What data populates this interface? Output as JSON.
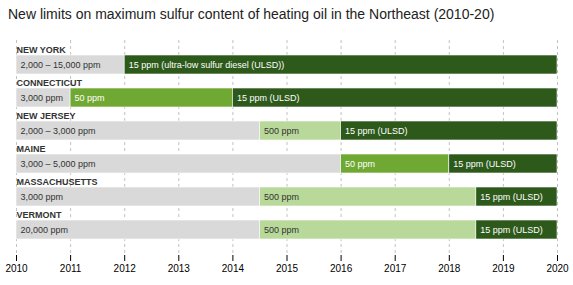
{
  "chart_data": {
    "type": "timeline",
    "title": "New limits on maximum sulfur content of heating oil in the Northeast (2010-20)",
    "orientation": "horizontal",
    "xlim": [
      2010,
      2020
    ],
    "xticks": [
      2010,
      2011,
      2012,
      2013,
      2014,
      2015,
      2016,
      2017,
      2018,
      2019,
      2020
    ],
    "grid": true,
    "categories": [
      "NEW YORK",
      "CONNECTICUT",
      "NEW JERSEY",
      "MAINE",
      "MASSACHUSETTS",
      "VERMONT"
    ],
    "segments": [
      [
        {
          "start": 2010,
          "end": 2012,
          "color": "#d9d9d9",
          "label": "2,000 – 15,000 ppm"
        },
        {
          "start": 2012,
          "end": 2020,
          "color": "#2d5a1b",
          "label": "15 ppm (ultra-low sulfur diesel (ULSD))"
        }
      ],
      [
        {
          "start": 2010,
          "end": 2011,
          "color": "#d9d9d9",
          "label": "3,000 ppm"
        },
        {
          "start": 2011,
          "end": 2014,
          "color": "#6fa832",
          "label": "50 ppm"
        },
        {
          "start": 2014,
          "end": 2020,
          "color": "#2d5a1b",
          "label": "15 ppm (ULSD)"
        }
      ],
      [
        {
          "start": 2010,
          "end": 2014.5,
          "color": "#d9d9d9",
          "label": "2,000 – 3,000 ppm"
        },
        {
          "start": 2014.5,
          "end": 2016,
          "color": "#b8d99a",
          "label": "500 ppm"
        },
        {
          "start": 2016,
          "end": 2020,
          "color": "#2d5a1b",
          "label": "15 ppm (ULSD)"
        }
      ],
      [
        {
          "start": 2010,
          "end": 2016,
          "color": "#d9d9d9",
          "label": "3,000 – 5,000 ppm"
        },
        {
          "start": 2016,
          "end": 2018,
          "color": "#6fa832",
          "label": "50 ppm"
        },
        {
          "start": 2018,
          "end": 2020,
          "color": "#2d5a1b",
          "label": "15 ppm (ULSD)"
        }
      ],
      [
        {
          "start": 2010,
          "end": 2014.5,
          "color": "#d9d9d9",
          "label": "3,000 ppm"
        },
        {
          "start": 2014.5,
          "end": 2018.5,
          "color": "#b8d99a",
          "label": "500 ppm"
        },
        {
          "start": 2018.5,
          "end": 2020,
          "color": "#2d5a1b",
          "label": "15 ppm (ULSD)"
        }
      ],
      [
        {
          "start": 2010,
          "end": 2014.5,
          "color": "#d9d9d9",
          "label": "20,000 ppm"
        },
        {
          "start": 2014.5,
          "end": 2018.5,
          "color": "#b8d99a",
          "label": "500 ppm"
        },
        {
          "start": 2018.5,
          "end": 2020,
          "color": "#2d5a1b",
          "label": "15 ppm (ULSD)"
        }
      ]
    ]
  }
}
